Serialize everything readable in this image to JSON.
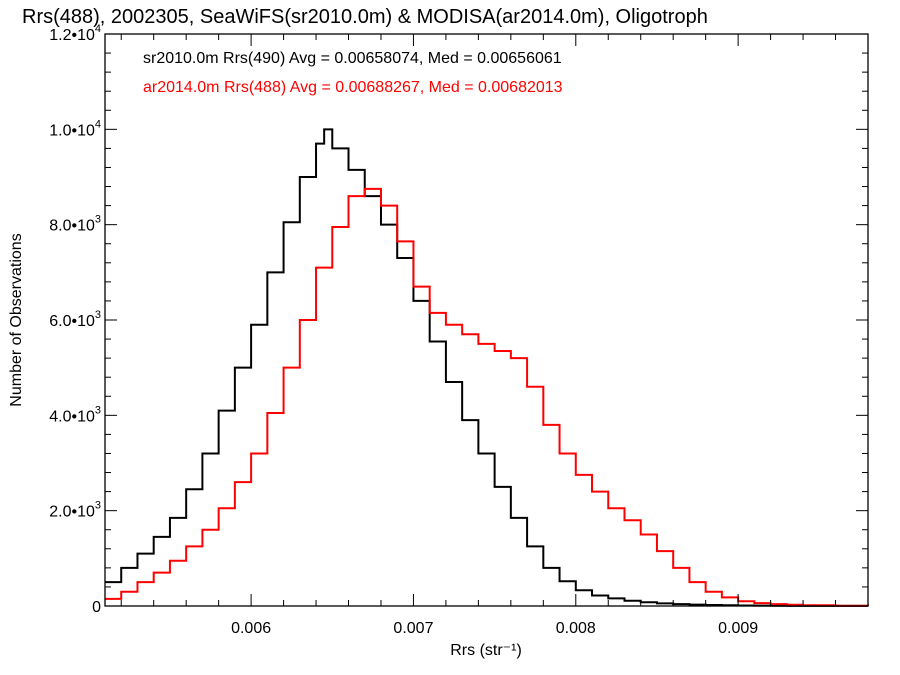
{
  "chart_data": {
    "type": "line",
    "title": "Rrs(488), 2002305, SeaWiFS(sr2010.0m) & MODISA(ar2014.0m), Oligotroph",
    "xlabel": "Rrs (str⁻¹)",
    "ylabel": "Number of Observations",
    "xlim": [
      0.0051,
      0.0098
    ],
    "ylim": [
      0,
      12000
    ],
    "xticks": [
      {
        "value": 0.006,
        "label": "0.006"
      },
      {
        "value": 0.007,
        "label": "0.007"
      },
      {
        "value": 0.008,
        "label": "0.008"
      },
      {
        "value": 0.009,
        "label": "0.009"
      }
    ],
    "yticks": [
      {
        "value": 0,
        "mant": "0",
        "exp": ""
      },
      {
        "value": 2000,
        "mant": "2.0•10",
        "exp": "3"
      },
      {
        "value": 4000,
        "mant": "4.0•10",
        "exp": "3"
      },
      {
        "value": 6000,
        "mant": "6.0•10",
        "exp": "3"
      },
      {
        "value": 8000,
        "mant": "8.0•10",
        "exp": "3"
      },
      {
        "value": 10000,
        "mant": "1.0•10",
        "exp": "4"
      },
      {
        "value": 12000,
        "mant": "1.2•10",
        "exp": "4"
      }
    ],
    "grid": false,
    "legend_position": "top-left",
    "series": [
      {
        "name": "sr2010.0m Rrs(490) Avg = 0.00658074, Med = 0.00656061",
        "color": "#000000",
        "x": [
          0.0051,
          0.0052,
          0.0053,
          0.0054,
          0.0055,
          0.0056,
          0.0057,
          0.0058,
          0.0059,
          0.006,
          0.0061,
          0.0062,
          0.0063,
          0.0064,
          0.00645,
          0.0065,
          0.0066,
          0.0067,
          0.0068,
          0.0069,
          0.007,
          0.0071,
          0.0072,
          0.0073,
          0.0074,
          0.0075,
          0.0076,
          0.0077,
          0.0078,
          0.0079,
          0.008,
          0.0081,
          0.0082,
          0.0083,
          0.0084,
          0.0085,
          0.0086,
          0.0087,
          0.0088,
          0.0089,
          0.009,
          0.0091,
          0.0092,
          0.0093,
          0.0095,
          0.0098
        ],
        "y": [
          500,
          800,
          1100,
          1450,
          1850,
          2450,
          3200,
          4100,
          5000,
          5900,
          7000,
          8050,
          9000,
          9700,
          10000,
          9600,
          9150,
          8600,
          8000,
          7300,
          6400,
          5550,
          4700,
          3900,
          3200,
          2500,
          1850,
          1250,
          800,
          520,
          330,
          220,
          160,
          110,
          80,
          55,
          40,
          30,
          20,
          15,
          10,
          8,
          5,
          3,
          2,
          0
        ]
      },
      {
        "name": "ar2014.0m Rrs(488) Avg = 0.00688267, Med = 0.00682013",
        "color": "#ff0000",
        "x": [
          0.0051,
          0.0052,
          0.0053,
          0.0054,
          0.0055,
          0.0056,
          0.0057,
          0.0058,
          0.0059,
          0.006,
          0.0061,
          0.0062,
          0.0063,
          0.0064,
          0.0065,
          0.0066,
          0.0067,
          0.0068,
          0.0069,
          0.007,
          0.0071,
          0.0072,
          0.0073,
          0.0074,
          0.0075,
          0.0076,
          0.0077,
          0.0078,
          0.0079,
          0.008,
          0.0081,
          0.0082,
          0.0083,
          0.0084,
          0.0085,
          0.0086,
          0.0087,
          0.0088,
          0.0089,
          0.009,
          0.0091,
          0.0092,
          0.0093,
          0.0094,
          0.0096,
          0.0098
        ],
        "y": [
          150,
          300,
          500,
          700,
          950,
          1250,
          1600,
          2050,
          2600,
          3200,
          4050,
          5000,
          6000,
          7100,
          7950,
          8600,
          8750,
          8400,
          7650,
          6700,
          6150,
          5900,
          5700,
          5500,
          5350,
          5200,
          4600,
          3800,
          3200,
          2750,
          2400,
          2050,
          1800,
          1500,
          1150,
          800,
          500,
          300,
          180,
          100,
          60,
          40,
          25,
          15,
          5,
          0
        ]
      }
    ]
  }
}
